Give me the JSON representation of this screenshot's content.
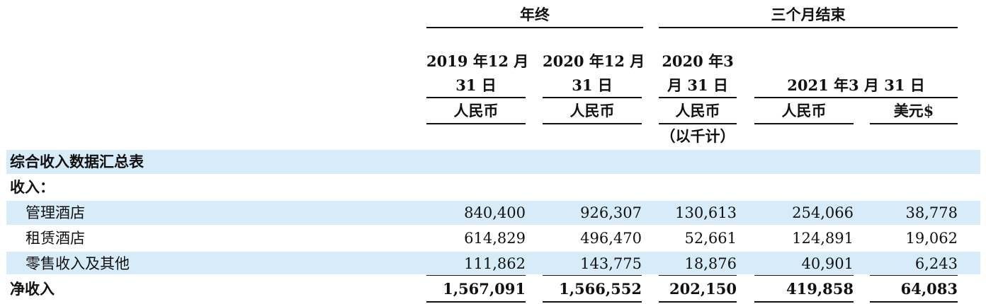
{
  "header": {
    "group_year_end": "年终",
    "group_three_months": "三个月结束",
    "col1_date_line1": "2019 年12 月",
    "col1_date_line2": "31 日",
    "col2_date_line1": "2020 年12 月",
    "col2_date_line2": "31 日",
    "col3_date_line1": "2020 年3",
    "col3_date_line2": "月 31 日",
    "col45_date": "2021 年3 月 31 日",
    "currency_rmb": "人民币",
    "currency_usd": "美元$",
    "unit_note": "（以千计）"
  },
  "section_title": "综合收入数据汇总表",
  "revenue_label": "收入：",
  "rows": [
    {
      "label": "管理酒店",
      "values": [
        "840,400",
        "926,307",
        "130,613",
        "254,066",
        "38,778"
      ]
    },
    {
      "label": "租赁酒店",
      "values": [
        "614,829",
        "496,470",
        "52,661",
        "124,891",
        "19,062"
      ]
    },
    {
      "label": "零售收入及其他",
      "values": [
        "111,862",
        "143,775",
        "18,876",
        "40,901",
        "6,243"
      ]
    }
  ],
  "total": {
    "label": "净收入",
    "values": [
      "1,567,091",
      "1,566,552",
      "202,150",
      "419,858",
      "64,083"
    ]
  }
}
